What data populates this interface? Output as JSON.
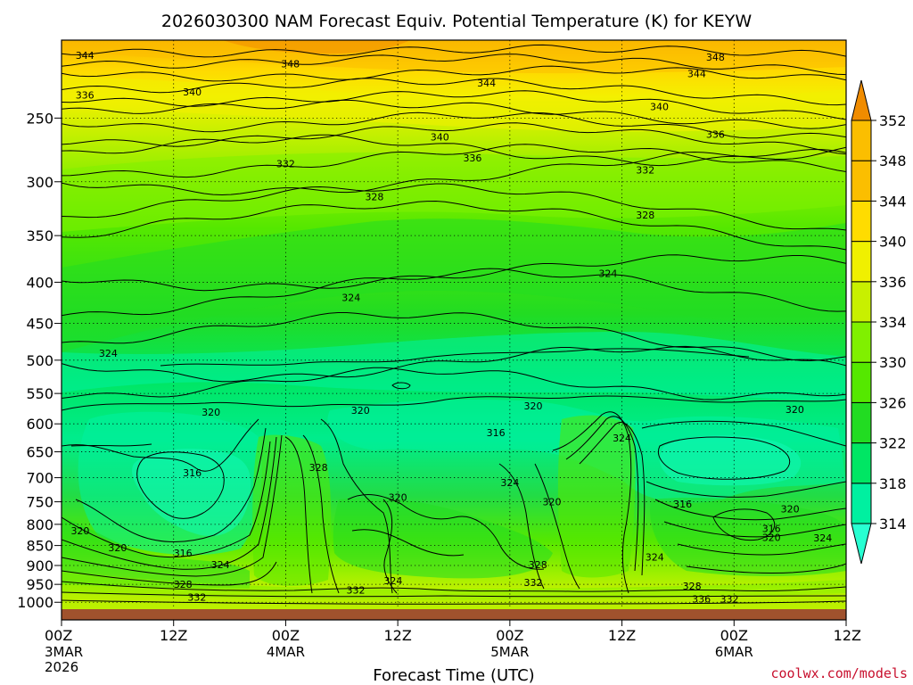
{
  "chart_data": {
    "type": "contour",
    "title": "2026030300 NAM Forecast Equiv. Potential Temperature (K) for KEYW",
    "xlabel": "Forecast Time (UTC)",
    "ylabel": "",
    "x_ticks": [
      {
        "label": "00Z",
        "sub": [
          "3MAR",
          "2026"
        ],
        "hours": 0
      },
      {
        "label": "12Z",
        "sub": [],
        "hours": 12
      },
      {
        "label": "00Z",
        "sub": [
          "4MAR"
        ],
        "hours": 24
      },
      {
        "label": "12Z",
        "sub": [],
        "hours": 36
      },
      {
        "label": "00Z",
        "sub": [
          "5MAR"
        ],
        "hours": 48
      },
      {
        "label": "12Z",
        "sub": [],
        "hours": 60
      },
      {
        "label": "00Z",
        "sub": [
          "6MAR"
        ],
        "hours": 72
      },
      {
        "label": "12Z",
        "sub": [],
        "hours": 84
      }
    ],
    "x_range_hours": [
      0,
      84
    ],
    "y_ticks": [
      "250",
      "300",
      "350",
      "400",
      "450",
      "500",
      "550",
      "600",
      "650",
      "700",
      "750",
      "800",
      "850",
      "900",
      "950",
      "1000"
    ],
    "y_axis": "pressure (hPa), log scale",
    "y_range": [
      200,
      1020
    ],
    "colorbar": {
      "levels": [
        "314",
        "318",
        "322",
        "326",
        "330",
        "334",
        "336",
        "340",
        "344",
        "348",
        "352"
      ],
      "colors": [
        "#28ffd2",
        "#00f0a0",
        "#00e664",
        "#22dc22",
        "#55e800",
        "#80f000",
        "#c8f000",
        "#f0f000",
        "#ffdc00",
        "#fbbe00",
        "#f08c00"
      ]
    },
    "contour_labels": [
      {
        "text": "344",
        "hours": 2.5,
        "p": 209
      },
      {
        "text": "348",
        "hours": 24.5,
        "p": 214
      },
      {
        "text": "348",
        "hours": 70,
        "p": 210
      },
      {
        "text": "344",
        "hours": 45.5,
        "p": 226
      },
      {
        "text": "344",
        "hours": 68,
        "p": 220
      },
      {
        "text": "336",
        "hours": 2.5,
        "p": 234
      },
      {
        "text": "340",
        "hours": 14,
        "p": 232
      },
      {
        "text": "340",
        "hours": 64,
        "p": 242
      },
      {
        "text": "340",
        "hours": 40.5,
        "p": 264
      },
      {
        "text": "336",
        "hours": 70,
        "p": 262
      },
      {
        "text": "336",
        "hours": 44,
        "p": 280
      },
      {
        "text": "332",
        "hours": 24,
        "p": 285
      },
      {
        "text": "332",
        "hours": 62.5,
        "p": 290
      },
      {
        "text": "328",
        "hours": 33.5,
        "p": 313
      },
      {
        "text": "328",
        "hours": 62.5,
        "p": 330
      },
      {
        "text": "324",
        "hours": 58.5,
        "p": 390
      },
      {
        "text": "324",
        "hours": 31,
        "p": 418
      },
      {
        "text": "324",
        "hours": 5,
        "p": 490
      },
      {
        "text": "320",
        "hours": 50.5,
        "p": 570
      },
      {
        "text": "320",
        "hours": 78.5,
        "p": 576
      },
      {
        "text": "320",
        "hours": 16,
        "p": 580
      },
      {
        "text": "320",
        "hours": 32,
        "p": 577
      },
      {
        "text": "316",
        "hours": 46.5,
        "p": 615
      },
      {
        "text": "324",
        "hours": 60,
        "p": 625
      },
      {
        "text": "316",
        "hours": 14,
        "p": 690
      },
      {
        "text": "328",
        "hours": 27.5,
        "p": 680
      },
      {
        "text": "324",
        "hours": 48,
        "p": 710
      },
      {
        "text": "320",
        "hours": 36,
        "p": 740
      },
      {
        "text": "320",
        "hours": 52.5,
        "p": 750
      },
      {
        "text": "316",
        "hours": 66.5,
        "p": 755
      },
      {
        "text": "320",
        "hours": 78,
        "p": 765
      },
      {
        "text": "316",
        "hours": 76,
        "p": 810
      },
      {
        "text": "320",
        "hours": 2,
        "p": 815
      },
      {
        "text": "320",
        "hours": 76,
        "p": 830
      },
      {
        "text": "324",
        "hours": 81.5,
        "p": 832
      },
      {
        "text": "320",
        "hours": 6,
        "p": 855
      },
      {
        "text": "316",
        "hours": 13,
        "p": 868
      },
      {
        "text": "324",
        "hours": 63.5,
        "p": 878
      },
      {
        "text": "324",
        "hours": 17,
        "p": 898
      },
      {
        "text": "328",
        "hours": 51,
        "p": 898
      },
      {
        "text": "324",
        "hours": 35.5,
        "p": 940
      },
      {
        "text": "328",
        "hours": 13,
        "p": 950
      },
      {
        "text": "332",
        "hours": 50.5,
        "p": 945
      },
      {
        "text": "328",
        "hours": 67.5,
        "p": 955
      },
      {
        "text": "332",
        "hours": 31.5,
        "p": 965
      },
      {
        "text": "332",
        "hours": 14.5,
        "p": 985
      },
      {
        "text": "336",
        "hours": 68.5,
        "p": 990
      },
      {
        "text": "332",
        "hours": 71.5,
        "p": 990
      }
    ],
    "grid": "dotted"
  },
  "credit": "coolwx.com/models"
}
